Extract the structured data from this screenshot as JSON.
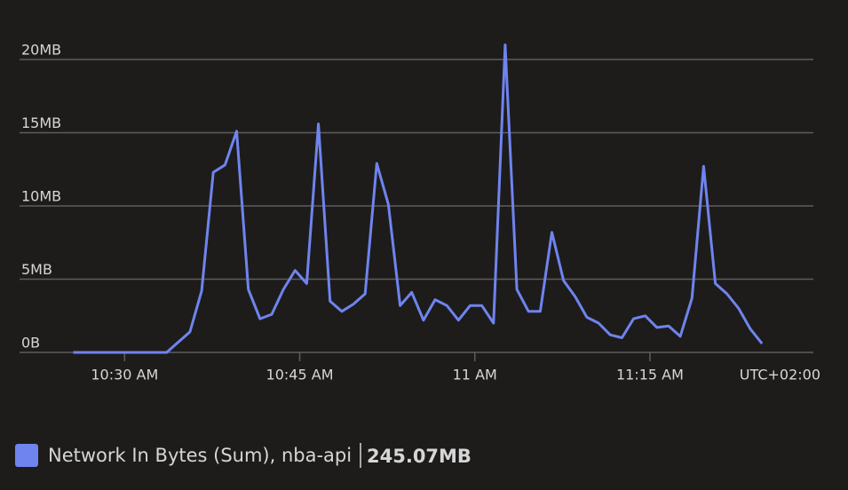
{
  "chart_data": {
    "type": "line",
    "x": [
      25.6,
      26.6,
      27.6,
      28.6,
      29.6,
      30.6,
      31.6,
      32.6,
      33.6,
      34.6,
      35.6,
      36.6,
      37.6,
      38.6,
      39.6,
      40.6,
      41.6,
      42.6,
      43.6,
      44.6,
      45.6,
      46.6,
      47.6,
      48.6,
      49.6,
      50.6,
      51.6,
      52.6,
      53.6,
      54.6,
      55.6,
      56.6,
      57.6,
      58.6,
      59.6,
      60.6,
      61.6,
      62.6,
      63.6,
      64.6,
      65.6,
      66.6,
      67.6,
      68.6,
      69.6,
      70.6,
      71.6,
      72.6,
      73.6,
      74.6,
      75.6,
      76.6,
      77.6,
      78.6,
      79.6,
      80.6,
      81.6,
      82.6,
      83.6,
      84.6
    ],
    "series": [
      {
        "name": "Network In Bytes (Sum), nba-api",
        "color": "#6f84ee",
        "values": [
          0,
          0,
          0,
          0,
          0,
          0,
          0,
          0,
          0,
          0.7,
          1.4,
          4.2,
          12.3,
          12.8,
          15.1,
          4.3,
          2.3,
          2.6,
          4.3,
          5.6,
          4.7,
          15.6,
          3.5,
          2.8,
          3.3,
          4.0,
          12.9,
          10.1,
          3.2,
          4.1,
          2.2,
          3.6,
          3.2,
          2.2,
          3.2,
          3.2,
          2.0,
          21.0,
          4.3,
          2.8,
          2.8,
          8.2,
          4.9,
          3.8,
          2.4,
          2.0,
          1.2,
          1.0,
          2.3,
          2.5,
          1.7,
          1.8,
          1.1,
          3.7,
          12.7,
          4.7,
          4.0,
          3.0,
          1.6,
          0.6
        ]
      }
    ],
    "legend_total": "245.07MB",
    "timezone": "UTC+02:00",
    "xlim": [
      21,
      89
    ],
    "xticks": [
      {
        "value": 30,
        "label": "10:30 AM"
      },
      {
        "value": 45,
        "label": "10:45 AM"
      },
      {
        "value": 60,
        "label": "11 AM"
      },
      {
        "value": 75,
        "label": "11:15 AM"
      }
    ],
    "ylim": [
      0,
      22
    ],
    "yticks": [
      {
        "value": 0,
        "label": "0B"
      },
      {
        "value": 5,
        "label": "5MB"
      },
      {
        "value": 10,
        "label": "10MB"
      },
      {
        "value": 15,
        "label": "15MB"
      },
      {
        "value": 20,
        "label": "20MB"
      }
    ],
    "grid": true
  }
}
